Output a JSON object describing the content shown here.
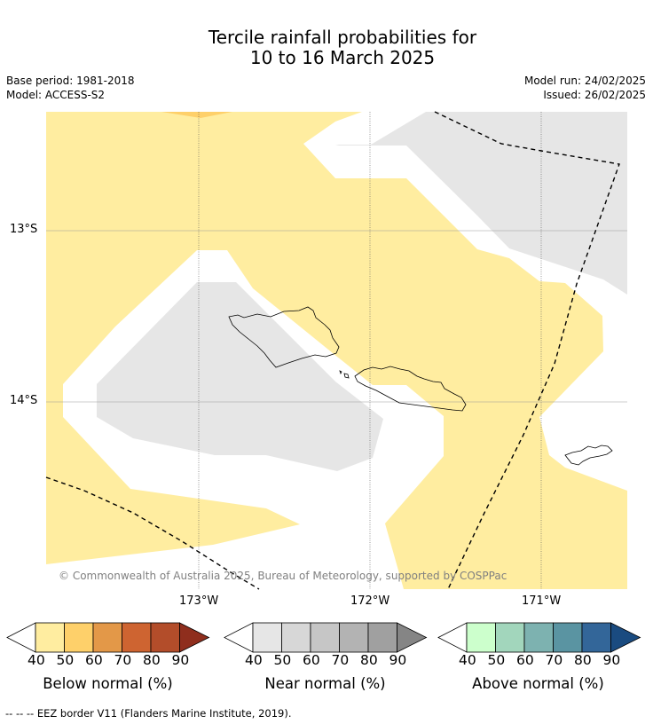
{
  "title": {
    "line1": "Tercile rainfall probabilities for",
    "line2": "10 to 16 March 2025"
  },
  "meta": {
    "base_period": "Base period: 1981-2018",
    "model": "Model: ACCESS-S2",
    "model_run": "Model run: 24/02/2025",
    "issued": "Issued: 26/02/2025"
  },
  "map": {
    "lat_ticks": [
      "13°S",
      "14°S"
    ],
    "lon_ticks": [
      "173°W",
      "172°W",
      "171°W"
    ],
    "credit": "© Commonwealth of Australia 2025, Bureau of Meteorology, supported by COSPPac",
    "region_colors": {
      "below_normal_40_50": "#ffeda0",
      "below_normal_50_60": "#fed06a",
      "near_normal_40_50": "#e6e6e6",
      "no_category": "#ffffff"
    }
  },
  "colorbars": [
    {
      "label": "Below normal (%)",
      "ticks": [
        "40",
        "50",
        "60",
        "70",
        "80",
        "90"
      ],
      "colors": [
        "#ffeda0",
        "#fed06a",
        "#e39848",
        "#ce6431",
        "#b34d2a",
        "#8f2e1d"
      ],
      "under_color": "#ffffff"
    },
    {
      "label": "Near normal (%)",
      "ticks": [
        "40",
        "50",
        "60",
        "70",
        "80",
        "90"
      ],
      "colors": [
        "#e6e6e6",
        "#d7d7d7",
        "#c6c6c6",
        "#b3b3b3",
        "#a0a0a0",
        "#858585"
      ],
      "under_color": "#ffffff"
    },
    {
      "label": "Above normal (%)",
      "ticks": [
        "40",
        "50",
        "60",
        "70",
        "80",
        "90"
      ],
      "colors": [
        "#ccffcc",
        "#a2d6bc",
        "#7db2b0",
        "#5a94a2",
        "#336699",
        "#1a4b80"
      ],
      "under_color": "#ffffff"
    }
  ],
  "footer": "-- -- -- EEZ border V11 (Flanders Marine Institute, 2019)."
}
